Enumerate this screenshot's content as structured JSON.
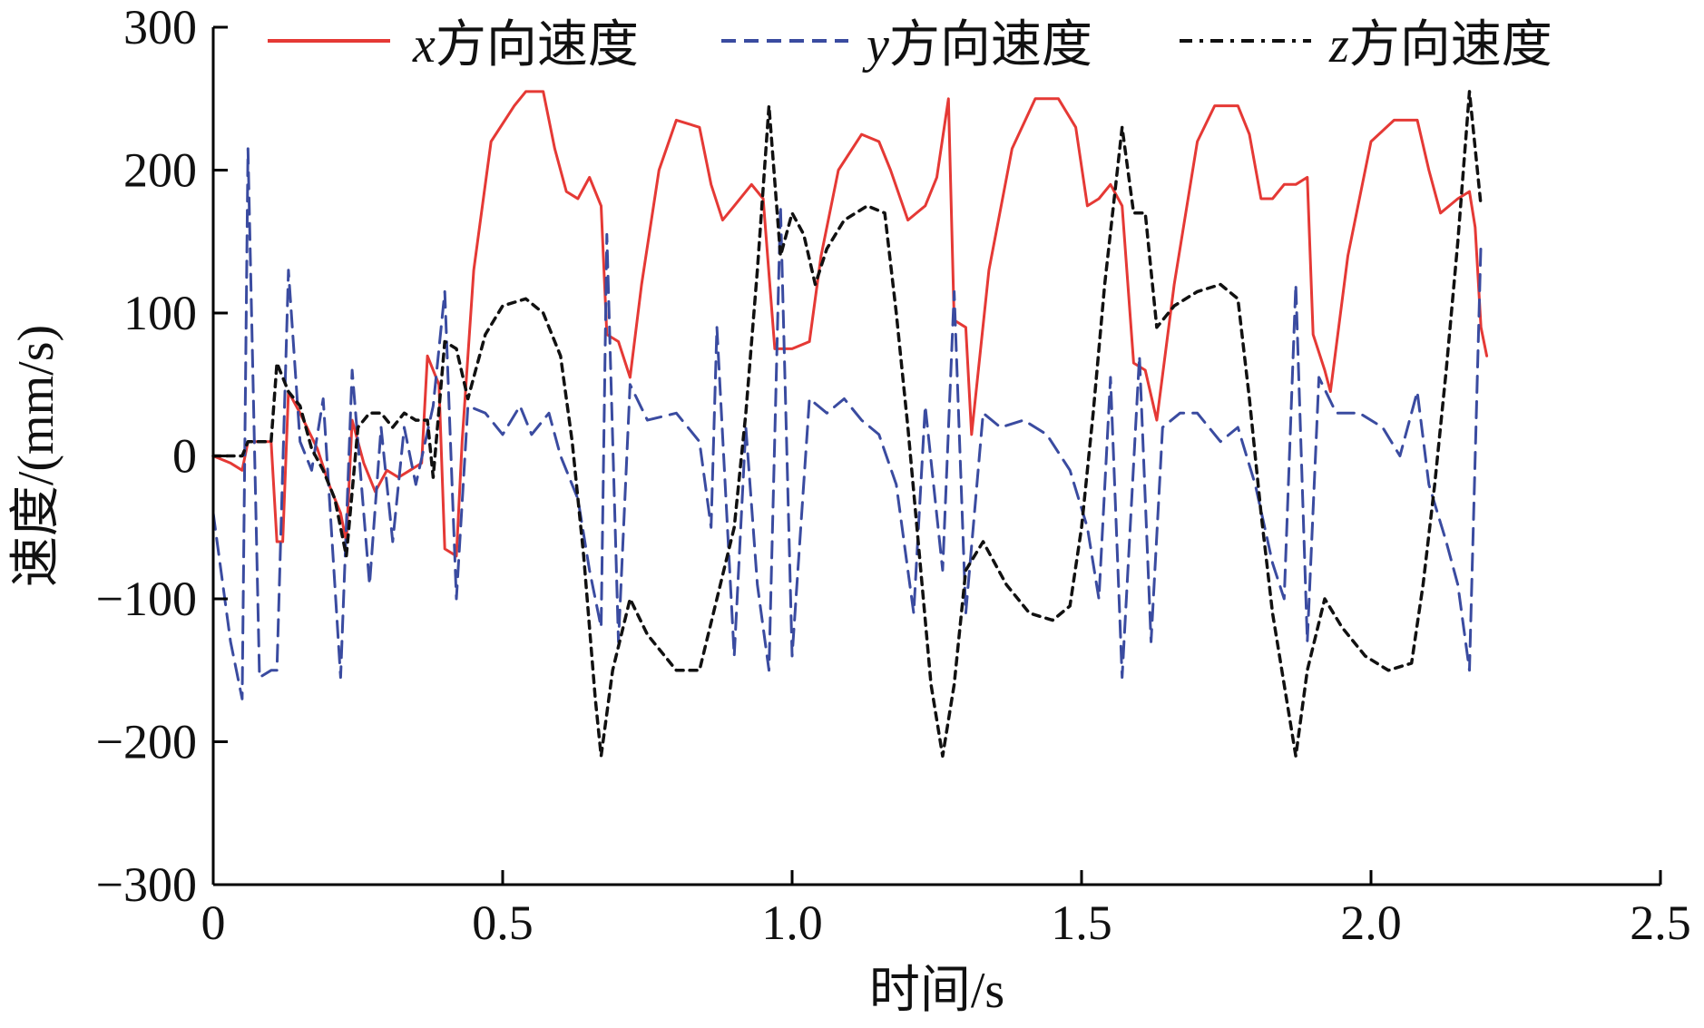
{
  "chart_data": {
    "type": "line",
    "title": "",
    "xlabel": "时间/s",
    "ylabel": "速度/(mm/s)",
    "xlim": [
      0,
      2.5
    ],
    "ylim": [
      -300,
      300
    ],
    "x_ticks": [
      0,
      0.5,
      1.0,
      1.5,
      2.0,
      2.5
    ],
    "x_tick_labels": [
      "0",
      "0.5",
      "1.0",
      "1.5",
      "2.0",
      "2.5"
    ],
    "y_ticks": [
      -300,
      -200,
      -100,
      0,
      100,
      200,
      300
    ],
    "y_tick_labels": [
      "−300",
      "−200",
      "−100",
      "0",
      "100",
      "200",
      "300"
    ],
    "grid": false,
    "legend_position": "top",
    "series": [
      {
        "name": "x方向速度",
        "legend_italic_prefix": "x",
        "legend_rest": "方向速度",
        "color": "#e53935",
        "dash": "solid",
        "points": [
          [
            0,
            0
          ],
          [
            0.03,
            -5
          ],
          [
            0.05,
            -10
          ],
          [
            0.06,
            10
          ],
          [
            0.08,
            10
          ],
          [
            0.1,
            10
          ],
          [
            0.11,
            -60
          ],
          [
            0.12,
            -60
          ],
          [
            0.13,
            45
          ],
          [
            0.15,
            30
          ],
          [
            0.18,
            5
          ],
          [
            0.2,
            -20
          ],
          [
            0.22,
            -40
          ],
          [
            0.23,
            -60
          ],
          [
            0.24,
            25
          ],
          [
            0.26,
            -5
          ],
          [
            0.28,
            -25
          ],
          [
            0.3,
            -10
          ],
          [
            0.32,
            -15
          ],
          [
            0.34,
            -10
          ],
          [
            0.36,
            -5
          ],
          [
            0.37,
            70
          ],
          [
            0.39,
            50
          ],
          [
            0.4,
            -65
          ],
          [
            0.42,
            -70
          ],
          [
            0.43,
            10
          ],
          [
            0.45,
            130
          ],
          [
            0.48,
            220
          ],
          [
            0.52,
            245
          ],
          [
            0.54,
            255
          ],
          [
            0.57,
            255
          ],
          [
            0.59,
            215
          ],
          [
            0.61,
            185
          ],
          [
            0.63,
            180
          ],
          [
            0.65,
            195
          ],
          [
            0.67,
            175
          ],
          [
            0.68,
            85
          ],
          [
            0.7,
            80
          ],
          [
            0.72,
            55
          ],
          [
            0.74,
            120
          ],
          [
            0.77,
            200
          ],
          [
            0.8,
            235
          ],
          [
            0.84,
            230
          ],
          [
            0.86,
            190
          ],
          [
            0.88,
            165
          ],
          [
            0.9,
            175
          ],
          [
            0.93,
            190
          ],
          [
            0.95,
            180
          ],
          [
            0.97,
            75
          ],
          [
            1.0,
            75
          ],
          [
            1.03,
            80
          ],
          [
            1.05,
            140
          ],
          [
            1.08,
            200
          ],
          [
            1.12,
            225
          ],
          [
            1.15,
            220
          ],
          [
            1.17,
            200
          ],
          [
            1.2,
            165
          ],
          [
            1.23,
            175
          ],
          [
            1.25,
            195
          ],
          [
            1.27,
            250
          ],
          [
            1.28,
            95
          ],
          [
            1.3,
            90
          ],
          [
            1.31,
            15
          ],
          [
            1.34,
            130
          ],
          [
            1.38,
            215
          ],
          [
            1.42,
            250
          ],
          [
            1.46,
            250
          ],
          [
            1.49,
            230
          ],
          [
            1.51,
            175
          ],
          [
            1.53,
            180
          ],
          [
            1.55,
            190
          ],
          [
            1.57,
            175
          ],
          [
            1.59,
            65
          ],
          [
            1.61,
            60
          ],
          [
            1.63,
            25
          ],
          [
            1.66,
            120
          ],
          [
            1.7,
            220
          ],
          [
            1.73,
            245
          ],
          [
            1.77,
            245
          ],
          [
            1.79,
            225
          ],
          [
            1.81,
            180
          ],
          [
            1.83,
            180
          ],
          [
            1.85,
            190
          ],
          [
            1.87,
            190
          ],
          [
            1.89,
            195
          ],
          [
            1.9,
            85
          ],
          [
            1.92,
            60
          ],
          [
            1.93,
            45
          ],
          [
            1.96,
            140
          ],
          [
            2.0,
            220
          ],
          [
            2.04,
            235
          ],
          [
            2.08,
            235
          ],
          [
            2.1,
            200
          ],
          [
            2.12,
            170
          ],
          [
            2.15,
            180
          ],
          [
            2.17,
            185
          ],
          [
            2.18,
            160
          ],
          [
            2.19,
            90
          ],
          [
            2.2,
            70
          ]
        ]
      },
      {
        "name": "y方向速度",
        "legend_italic_prefix": "y",
        "legend_rest": "方向速度",
        "color": "#3a4ba0",
        "dash": "18 10",
        "points": [
          [
            0,
            -40
          ],
          [
            0.03,
            -130
          ],
          [
            0.05,
            -170
          ],
          [
            0.06,
            215
          ],
          [
            0.08,
            -155
          ],
          [
            0.1,
            -150
          ],
          [
            0.11,
            -150
          ],
          [
            0.13,
            130
          ],
          [
            0.15,
            10
          ],
          [
            0.17,
            -10
          ],
          [
            0.19,
            40
          ],
          [
            0.22,
            -155
          ],
          [
            0.24,
            60
          ],
          [
            0.27,
            -90
          ],
          [
            0.29,
            20
          ],
          [
            0.31,
            -60
          ],
          [
            0.33,
            20
          ],
          [
            0.35,
            -20
          ],
          [
            0.38,
            35
          ],
          [
            0.4,
            115
          ],
          [
            0.42,
            -100
          ],
          [
            0.44,
            35
          ],
          [
            0.47,
            30
          ],
          [
            0.5,
            15
          ],
          [
            0.53,
            35
          ],
          [
            0.55,
            15
          ],
          [
            0.58,
            30
          ],
          [
            0.6,
            0
          ],
          [
            0.63,
            -30
          ],
          [
            0.65,
            -80
          ],
          [
            0.67,
            -120
          ],
          [
            0.68,
            155
          ],
          [
            0.7,
            -130
          ],
          [
            0.72,
            50
          ],
          [
            0.75,
            25
          ],
          [
            0.8,
            30
          ],
          [
            0.84,
            10
          ],
          [
            0.86,
            -50
          ],
          [
            0.87,
            90
          ],
          [
            0.9,
            -140
          ],
          [
            0.92,
            20
          ],
          [
            0.94,
            -90
          ],
          [
            0.96,
            -150
          ],
          [
            0.98,
            175
          ],
          [
            1.0,
            -140
          ],
          [
            1.03,
            40
          ],
          [
            1.06,
            30
          ],
          [
            1.09,
            40
          ],
          [
            1.12,
            25
          ],
          [
            1.15,
            15
          ],
          [
            1.18,
            -20
          ],
          [
            1.21,
            -110
          ],
          [
            1.23,
            35
          ],
          [
            1.26,
            -80
          ],
          [
            1.28,
            115
          ],
          [
            1.3,
            -110
          ],
          [
            1.33,
            30
          ],
          [
            1.36,
            20
          ],
          [
            1.4,
            25
          ],
          [
            1.44,
            15
          ],
          [
            1.48,
            -10
          ],
          [
            1.51,
            -50
          ],
          [
            1.53,
            -100
          ],
          [
            1.55,
            55
          ],
          [
            1.57,
            -155
          ],
          [
            1.6,
            70
          ],
          [
            1.62,
            -130
          ],
          [
            1.64,
            20
          ],
          [
            1.67,
            30
          ],
          [
            1.7,
            30
          ],
          [
            1.74,
            10
          ],
          [
            1.77,
            20
          ],
          [
            1.8,
            -20
          ],
          [
            1.83,
            -75
          ],
          [
            1.85,
            -100
          ],
          [
            1.87,
            120
          ],
          [
            1.89,
            -130
          ],
          [
            1.91,
            55
          ],
          [
            1.94,
            30
          ],
          [
            1.98,
            30
          ],
          [
            2.02,
            20
          ],
          [
            2.05,
            0
          ],
          [
            2.08,
            45
          ],
          [
            2.1,
            -20
          ],
          [
            2.13,
            -60
          ],
          [
            2.15,
            -90
          ],
          [
            2.17,
            -150
          ],
          [
            2.19,
            150
          ]
        ]
      },
      {
        "name": "z方向速度",
        "legend_italic_prefix": "z",
        "legend_rest": "方向速度",
        "color": "#111111",
        "dash": "8 7",
        "points": [
          [
            0,
            0
          ],
          [
            0.03,
            0
          ],
          [
            0.05,
            0
          ],
          [
            0.06,
            10
          ],
          [
            0.08,
            10
          ],
          [
            0.1,
            10
          ],
          [
            0.11,
            65
          ],
          [
            0.13,
            45
          ],
          [
            0.15,
            35
          ],
          [
            0.17,
            5
          ],
          [
            0.19,
            -10
          ],
          [
            0.21,
            -30
          ],
          [
            0.23,
            -70
          ],
          [
            0.25,
            20
          ],
          [
            0.27,
            30
          ],
          [
            0.29,
            30
          ],
          [
            0.31,
            20
          ],
          [
            0.33,
            30
          ],
          [
            0.35,
            25
          ],
          [
            0.37,
            25
          ],
          [
            0.38,
            -15
          ],
          [
            0.4,
            80
          ],
          [
            0.42,
            75
          ],
          [
            0.44,
            40
          ],
          [
            0.47,
            85
          ],
          [
            0.5,
            105
          ],
          [
            0.54,
            110
          ],
          [
            0.57,
            100
          ],
          [
            0.6,
            70
          ],
          [
            0.62,
            10
          ],
          [
            0.64,
            -70
          ],
          [
            0.66,
            -170
          ],
          [
            0.67,
            -210
          ],
          [
            0.69,
            -150
          ],
          [
            0.72,
            -100
          ],
          [
            0.75,
            -125
          ],
          [
            0.78,
            -140
          ],
          [
            0.8,
            -150
          ],
          [
            0.84,
            -150
          ],
          [
            0.87,
            -100
          ],
          [
            0.9,
            -50
          ],
          [
            0.92,
            30
          ],
          [
            0.94,
            130
          ],
          [
            0.96,
            245
          ],
          [
            0.98,
            140
          ],
          [
            1.0,
            170
          ],
          [
            1.02,
            155
          ],
          [
            1.04,
            120
          ],
          [
            1.06,
            145
          ],
          [
            1.09,
            165
          ],
          [
            1.13,
            175
          ],
          [
            1.16,
            170
          ],
          [
            1.18,
            100
          ],
          [
            1.2,
            20
          ],
          [
            1.22,
            -70
          ],
          [
            1.24,
            -160
          ],
          [
            1.26,
            -210
          ],
          [
            1.28,
            -160
          ],
          [
            1.3,
            -80
          ],
          [
            1.33,
            -60
          ],
          [
            1.37,
            -90
          ],
          [
            1.41,
            -110
          ],
          [
            1.45,
            -115
          ],
          [
            1.48,
            -105
          ],
          [
            1.5,
            -50
          ],
          [
            1.52,
            30
          ],
          [
            1.54,
            120
          ],
          [
            1.57,
            230
          ],
          [
            1.59,
            170
          ],
          [
            1.61,
            170
          ],
          [
            1.63,
            90
          ],
          [
            1.66,
            105
          ],
          [
            1.7,
            115
          ],
          [
            1.74,
            120
          ],
          [
            1.77,
            110
          ],
          [
            1.79,
            40
          ],
          [
            1.81,
            -40
          ],
          [
            1.83,
            -110
          ],
          [
            1.85,
            -160
          ],
          [
            1.87,
            -210
          ],
          [
            1.89,
            -150
          ],
          [
            1.92,
            -100
          ],
          [
            1.95,
            -120
          ],
          [
            1.99,
            -140
          ],
          [
            2.03,
            -150
          ],
          [
            2.07,
            -145
          ],
          [
            2.09,
            -90
          ],
          [
            2.11,
            -20
          ],
          [
            2.13,
            60
          ],
          [
            2.15,
            150
          ],
          [
            2.17,
            255
          ],
          [
            2.19,
            175
          ]
        ]
      }
    ]
  }
}
